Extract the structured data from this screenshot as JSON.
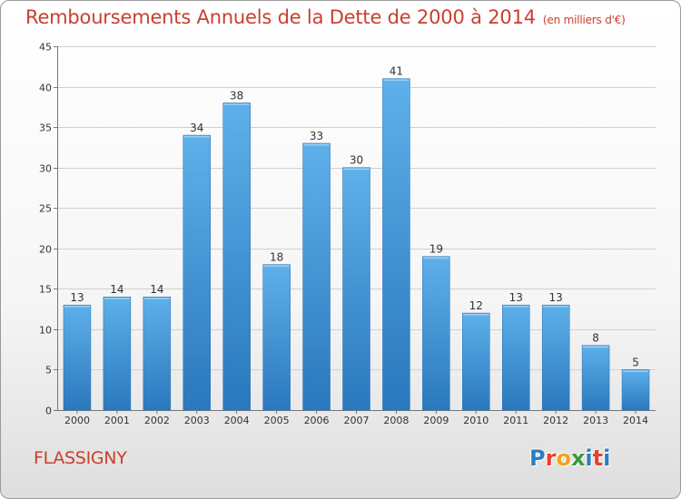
{
  "title": "Remboursements Annuels de la Dette de 2000 à 2014",
  "title_unit": "(en milliers d'€)",
  "commune": "FLASSIGNY",
  "logo": {
    "text": "Proxiti",
    "letter_colors": [
      "#2c7fc2",
      "#e8402a",
      "#f5a11c",
      "#3a9a3a",
      "#2c7fc2",
      "#e8402a",
      "#2c7fc2"
    ]
  },
  "colors": {
    "title": "#c8402e",
    "bar_top": "#5eb0ea",
    "bar_bottom": "#2a78bd",
    "grid": "#d0d0d0",
    "axis_text": "#333333"
  },
  "chart_data": {
    "type": "bar",
    "categories": [
      "2000",
      "2001",
      "2002",
      "2003",
      "2004",
      "2005",
      "2006",
      "2007",
      "2008",
      "2009",
      "2010",
      "2011",
      "2012",
      "2013",
      "2014"
    ],
    "values": [
      13,
      14,
      14,
      34,
      38,
      18,
      33,
      30,
      41,
      19,
      12,
      13,
      13,
      8,
      5
    ],
    "title": "Remboursements Annuels de la Dette de 2000 à 2014",
    "xlabel": "",
    "ylabel": "",
    "ylim": [
      0,
      45
    ],
    "yticks": [
      0,
      5,
      10,
      15,
      20,
      25,
      30,
      35,
      40,
      45
    ],
    "grid": true,
    "data_labels": true
  }
}
